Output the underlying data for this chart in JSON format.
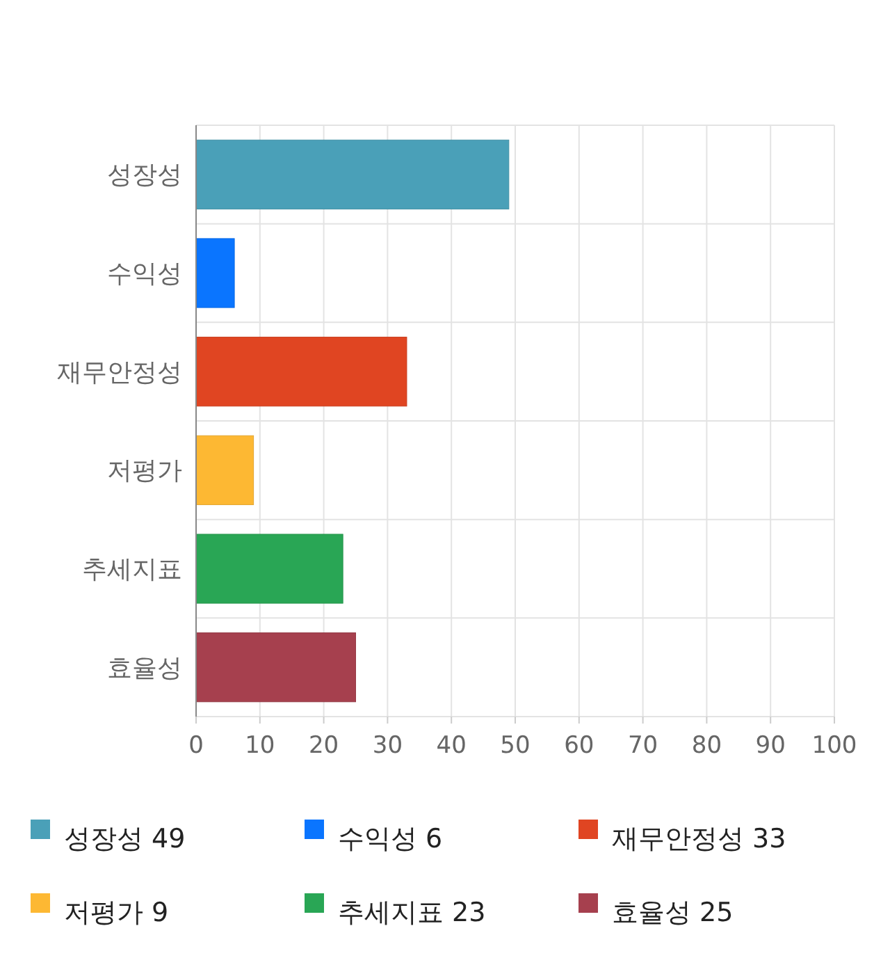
{
  "chart_data": {
    "type": "bar",
    "orientation": "horizontal",
    "stacked": true,
    "categories": [
      "성장성",
      "수익성",
      "재무안정성",
      "저평가",
      "추세지표",
      "효율성"
    ],
    "series": [
      {
        "name": "성장성 49",
        "color": "#4aa0b8",
        "values": [
          49,
          null,
          null,
          null,
          null,
          null
        ]
      },
      {
        "name": "수익성 6",
        "color": "#0a75ff",
        "values": [
          null,
          6,
          null,
          null,
          null,
          null
        ]
      },
      {
        "name": "재무안정성 33",
        "color": "#e04522",
        "values": [
          null,
          null,
          33,
          null,
          null,
          null
        ]
      },
      {
        "name": "저평가 9",
        "color": "#fdb833",
        "values": [
          null,
          null,
          null,
          9,
          null,
          null
        ]
      },
      {
        "name": "추세지표 23",
        "color": "#29a655",
        "values": [
          null,
          null,
          null,
          null,
          23,
          null
        ]
      },
      {
        "name": "효율성 25",
        "color": "#a6404e",
        "values": [
          null,
          null,
          null,
          null,
          null,
          25
        ]
      }
    ],
    "xlim": [
      0,
      100
    ],
    "xticks": [
      0,
      10,
      20,
      30,
      40,
      50,
      60,
      70,
      80,
      90,
      100
    ],
    "grid": true,
    "legend": "bottom"
  }
}
